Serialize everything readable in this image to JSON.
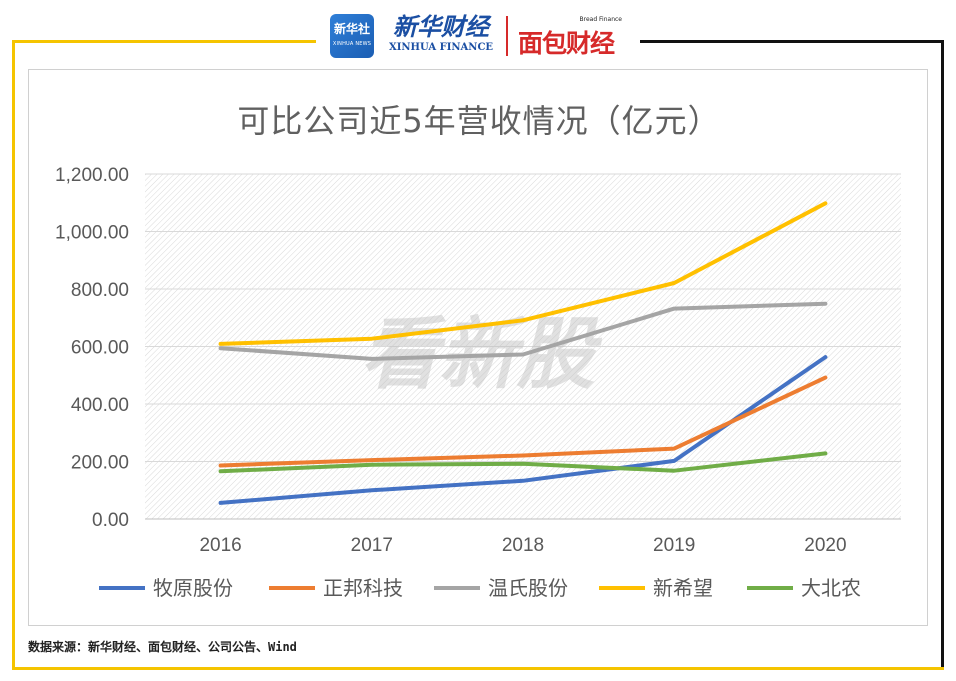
{
  "header": {
    "xinhua_badge_cn": "新华社",
    "xinhua_badge_en": "XINHUA NEWS",
    "xinhua_finance_cn": "新华财经",
    "xinhua_finance_en": "XINHUA FINANCE",
    "bread_en": "Bread Finance",
    "bread_cn": "面包财经"
  },
  "colors": {
    "frame_accent": "#f5c400",
    "frame_dark": "#111111",
    "brand_blue": "#1b4fa3",
    "brand_red": "#d62a2a"
  },
  "watermark": "看新股",
  "source": "数据来源：新华财经、面包财经、公司公告、Wind",
  "chart_data": {
    "type": "line",
    "title": "可比公司近5年营收情况（亿元）",
    "xlabel": "",
    "ylabel": "",
    "categories": [
      "2016",
      "2017",
      "2018",
      "2019",
      "2020"
    ],
    "ylim": [
      0,
      1200
    ],
    "yticks": [
      "0.00",
      "200.00",
      "400.00",
      "600.00",
      "800.00",
      "1,000.00",
      "1,200.00"
    ],
    "ytick_values": [
      0,
      200,
      400,
      600,
      800,
      1000,
      1200
    ],
    "grid": true,
    "legend_position": "bottom",
    "series": [
      {
        "name": "牧原股份",
        "color": "#4472c4",
        "values": [
          56,
          100,
          133,
          202,
          563
        ]
      },
      {
        "name": "正邦科技",
        "color": "#ed7d31",
        "values": [
          186,
          205,
          221,
          245,
          492
        ]
      },
      {
        "name": "温氏股份",
        "color": "#a5a5a5",
        "values": [
          594,
          557,
          572,
          732,
          749
        ]
      },
      {
        "name": "新希望",
        "color": "#ffc000",
        "values": [
          609,
          627,
          691,
          821,
          1098
        ]
      },
      {
        "name": "大北农",
        "color": "#70ad47",
        "values": [
          166,
          189,
          192,
          168,
          228
        ]
      }
    ]
  }
}
